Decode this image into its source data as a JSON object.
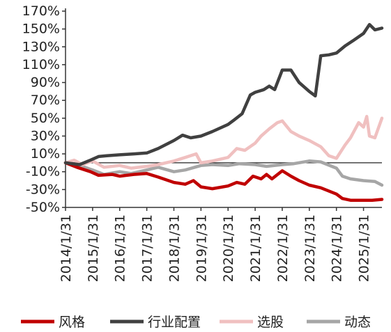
{
  "chart_data": {
    "type": "line",
    "title": "",
    "xlabel": "",
    "ylabel": "",
    "ylim": [
      -50,
      170
    ],
    "yticks": [
      -50,
      -30,
      -10,
      10,
      30,
      50,
      70,
      90,
      110,
      130,
      150,
      170
    ],
    "ytick_labels": [
      "-50%",
      "-30%",
      "-10%",
      "10%",
      "30%",
      "50%",
      "70%",
      "90%",
      "110%",
      "130%",
      "150%",
      "170%"
    ],
    "xlim": [
      2014.08,
      2025.76
    ],
    "xticks": [
      2014.08,
      2015.08,
      2016.08,
      2017.08,
      2018.08,
      2019.08,
      2020.08,
      2021.08,
      2022.08,
      2023.08,
      2024.08,
      2025.08
    ],
    "xtick_labels": [
      "2014/1/31",
      "2015/1/31",
      "2016/1/31",
      "2017/1/31",
      "2018/1/31",
      "2019/1/31",
      "2020/1/31",
      "2021/1/31",
      "2022/1/31",
      "2023/1/31",
      "2024/1/31",
      "2025/1/31"
    ],
    "legend_position": "bottom",
    "series": [
      {
        "name": "风格",
        "color": "#c00000",
        "points": [
          [
            2014.08,
            0
          ],
          [
            2014.5,
            -5
          ],
          [
            2015.0,
            -10
          ],
          [
            2015.3,
            -14
          ],
          [
            2015.8,
            -13
          ],
          [
            2016.08,
            -15
          ],
          [
            2016.6,
            -13
          ],
          [
            2017.08,
            -12
          ],
          [
            2017.5,
            -16
          ],
          [
            2018.08,
            -22
          ],
          [
            2018.5,
            -24
          ],
          [
            2018.8,
            -20
          ],
          [
            2019.08,
            -27
          ],
          [
            2019.5,
            -29
          ],
          [
            2020.08,
            -26
          ],
          [
            2020.4,
            -22
          ],
          [
            2020.7,
            -24
          ],
          [
            2021.0,
            -15
          ],
          [
            2021.3,
            -18
          ],
          [
            2021.5,
            -13
          ],
          [
            2021.7,
            -18
          ],
          [
            2022.08,
            -9
          ],
          [
            2022.4,
            -15
          ],
          [
            2022.7,
            -20
          ],
          [
            2023.08,
            -25
          ],
          [
            2023.5,
            -28
          ],
          [
            2024.08,
            -35
          ],
          [
            2024.3,
            -40
          ],
          [
            2024.6,
            -42
          ],
          [
            2025.08,
            -42
          ],
          [
            2025.4,
            -42
          ],
          [
            2025.76,
            -41
          ]
        ]
      },
      {
        "name": "行业配置",
        "color": "#404040",
        "points": [
          [
            2014.08,
            0
          ],
          [
            2014.6,
            -2
          ],
          [
            2015.0,
            3
          ],
          [
            2015.3,
            7
          ],
          [
            2015.6,
            8
          ],
          [
            2016.08,
            9
          ],
          [
            2016.6,
            10
          ],
          [
            2017.08,
            11
          ],
          [
            2017.5,
            16
          ],
          [
            2018.08,
            25
          ],
          [
            2018.4,
            31
          ],
          [
            2018.7,
            28
          ],
          [
            2019.08,
            30
          ],
          [
            2019.5,
            35
          ],
          [
            2020.08,
            43
          ],
          [
            2020.3,
            48
          ],
          [
            2020.6,
            55
          ],
          [
            2020.9,
            76
          ],
          [
            2021.08,
            79
          ],
          [
            2021.4,
            82
          ],
          [
            2021.6,
            86
          ],
          [
            2021.8,
            82
          ],
          [
            2022.08,
            104
          ],
          [
            2022.4,
            104
          ],
          [
            2022.7,
            90
          ],
          [
            2023.08,
            80
          ],
          [
            2023.3,
            75
          ],
          [
            2023.5,
            120
          ],
          [
            2023.8,
            121
          ],
          [
            2024.08,
            123
          ],
          [
            2024.4,
            131
          ],
          [
            2024.7,
            137
          ],
          [
            2025.08,
            145
          ],
          [
            2025.3,
            155
          ],
          [
            2025.5,
            149
          ],
          [
            2025.76,
            151
          ]
        ]
      },
      {
        "name": "选股",
        "color": "#f0c0c0",
        "points": [
          [
            2014.08,
            0
          ],
          [
            2014.4,
            3
          ],
          [
            2014.7,
            -2
          ],
          [
            2015.08,
            2
          ],
          [
            2015.5,
            -5
          ],
          [
            2016.08,
            -3
          ],
          [
            2016.5,
            -6
          ],
          [
            2017.08,
            -4
          ],
          [
            2017.5,
            -2
          ],
          [
            2018.08,
            2
          ],
          [
            2018.5,
            6
          ],
          [
            2018.9,
            10
          ],
          [
            2019.08,
            0
          ],
          [
            2019.5,
            2
          ],
          [
            2020.08,
            6
          ],
          [
            2020.4,
            16
          ],
          [
            2020.7,
            14
          ],
          [
            2021.08,
            22
          ],
          [
            2021.3,
            30
          ],
          [
            2021.6,
            38
          ],
          [
            2021.9,
            45
          ],
          [
            2022.08,
            47
          ],
          [
            2022.4,
            35
          ],
          [
            2022.7,
            30
          ],
          [
            2023.08,
            25
          ],
          [
            2023.5,
            18
          ],
          [
            2023.8,
            8
          ],
          [
            2024.08,
            5
          ],
          [
            2024.4,
            20
          ],
          [
            2024.6,
            28
          ],
          [
            2024.9,
            45
          ],
          [
            2025.08,
            40
          ],
          [
            2025.2,
            52
          ],
          [
            2025.3,
            30
          ],
          [
            2025.5,
            28
          ],
          [
            2025.76,
            50
          ]
        ]
      },
      {
        "name": "动态",
        "color": "#a6a6a6",
        "points": [
          [
            2014.08,
            0
          ],
          [
            2014.5,
            -2
          ],
          [
            2015.08,
            -8
          ],
          [
            2015.5,
            -13
          ],
          [
            2016.08,
            -10
          ],
          [
            2016.5,
            -12
          ],
          [
            2017.08,
            -8
          ],
          [
            2017.5,
            -5
          ],
          [
            2018.08,
            -10
          ],
          [
            2018.5,
            -8
          ],
          [
            2019.08,
            -3
          ],
          [
            2019.5,
            -2
          ],
          [
            2020.08,
            -3
          ],
          [
            2020.5,
            -1
          ],
          [
            2021.08,
            -2
          ],
          [
            2021.5,
            -4
          ],
          [
            2022.08,
            -2
          ],
          [
            2022.5,
            -1
          ],
          [
            2023.08,
            2
          ],
          [
            2023.5,
            1
          ],
          [
            2024.08,
            -6
          ],
          [
            2024.3,
            -15
          ],
          [
            2024.6,
            -18
          ],
          [
            2025.08,
            -20
          ],
          [
            2025.5,
            -21
          ],
          [
            2025.76,
            -25
          ]
        ]
      }
    ]
  }
}
